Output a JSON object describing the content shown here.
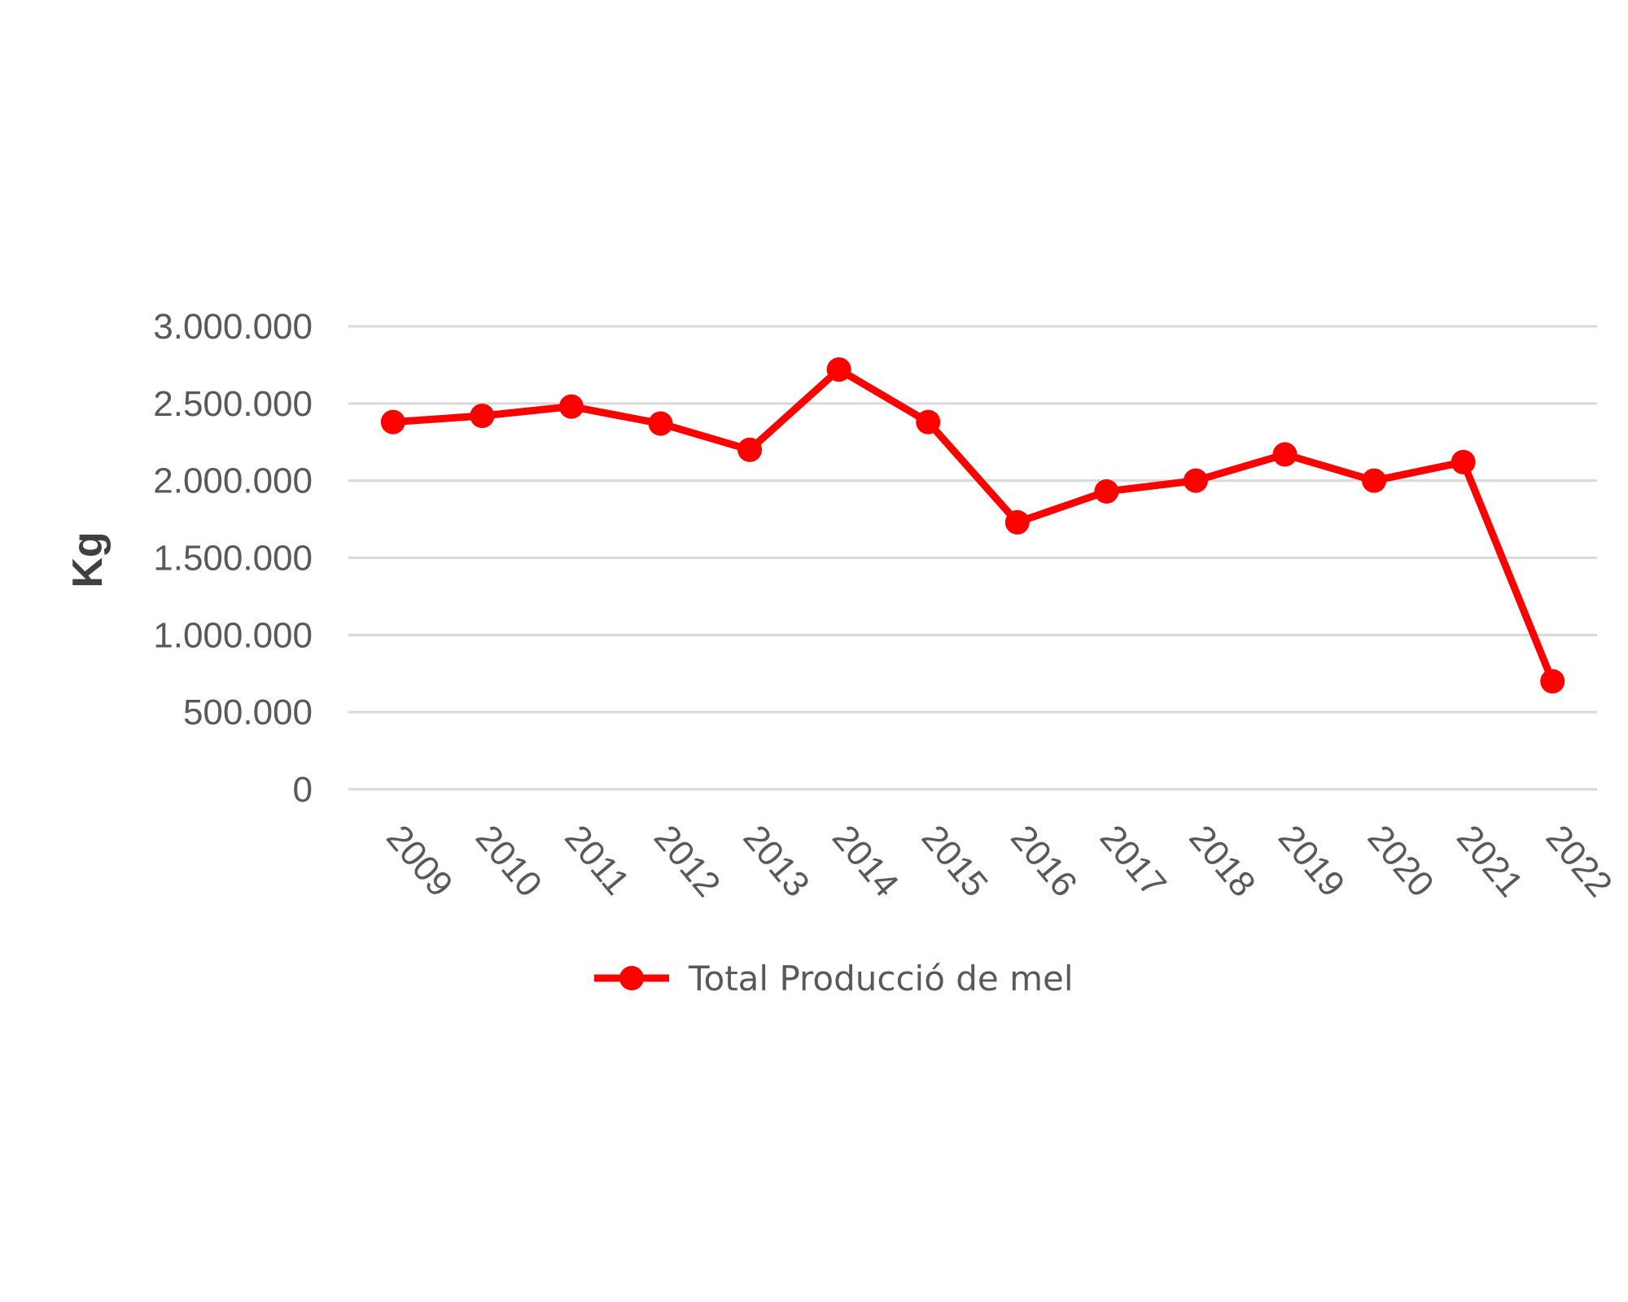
{
  "chart_data": {
    "type": "line",
    "title": "",
    "xlabel": "",
    "ylabel": "Kg",
    "categories": [
      "2009",
      "2010",
      "2011",
      "2012",
      "2013",
      "2014",
      "2015",
      "2016",
      "2017",
      "2018",
      "2019",
      "2020",
      "2021",
      "2022"
    ],
    "series": [
      {
        "name": "Total Producció de mel",
        "color": "#ff0000",
        "values": [
          2380000,
          2420000,
          2480000,
          2370000,
          2200000,
          2720000,
          2380000,
          1730000,
          1930000,
          2000000,
          2170000,
          2000000,
          2120000,
          700000
        ]
      }
    ],
    "ylim": [
      0,
      3000000
    ],
    "yticks": [
      0,
      500000,
      1000000,
      1500000,
      2000000,
      2500000,
      3000000
    ],
    "ytick_labels": [
      "0",
      "500.000",
      "1.000.000",
      "1.500.000",
      "2.000.000",
      "2.500.000",
      "3.000.000"
    ],
    "grid": true,
    "legend_position": "bottom"
  }
}
